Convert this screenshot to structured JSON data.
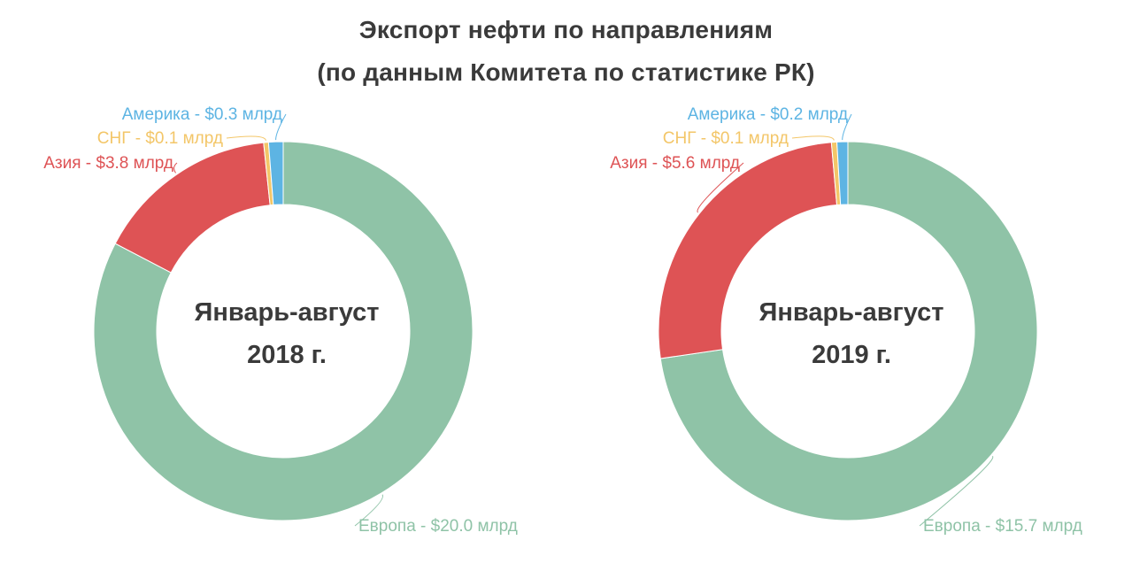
{
  "header": {
    "title": "Экспорт нефти по направлениям",
    "subtitle": "(по данным Комитета по статистике РК)"
  },
  "colors": {
    "Америка": "#5db4e3",
    "СНГ": "#f3c668",
    "Азия": "#de5355",
    "Европа": "#8fc3a7",
    "text": "#3a3a3a"
  },
  "chart_data": [
    {
      "type": "pie",
      "variant": "donut",
      "center_label": [
        "Январь-август",
        "2018 г."
      ],
      "categories": [
        "Европа",
        "Азия",
        "СНГ",
        "Америка"
      ],
      "values": [
        20.0,
        3.8,
        0.1,
        0.3
      ],
      "unit": "$ млрд",
      "labels": [
        "Европа - $20.0 млрд",
        "Азия - $3.8 млрд",
        "СНГ - $0.1 млрд",
        "Америка - $0.3 млрд"
      ]
    },
    {
      "type": "pie",
      "variant": "donut",
      "center_label": [
        "Январь-август",
        "2019 г."
      ],
      "categories": [
        "Европа",
        "Азия",
        "СНГ",
        "Америка"
      ],
      "values": [
        15.7,
        5.6,
        0.1,
        0.2
      ],
      "unit": "$ млрд",
      "labels": [
        "Европа - $15.7 млрд",
        "Азия - $5.6 млрд",
        "СНГ - $0.1 млрд",
        "Америка - $0.2 млрд"
      ]
    }
  ]
}
